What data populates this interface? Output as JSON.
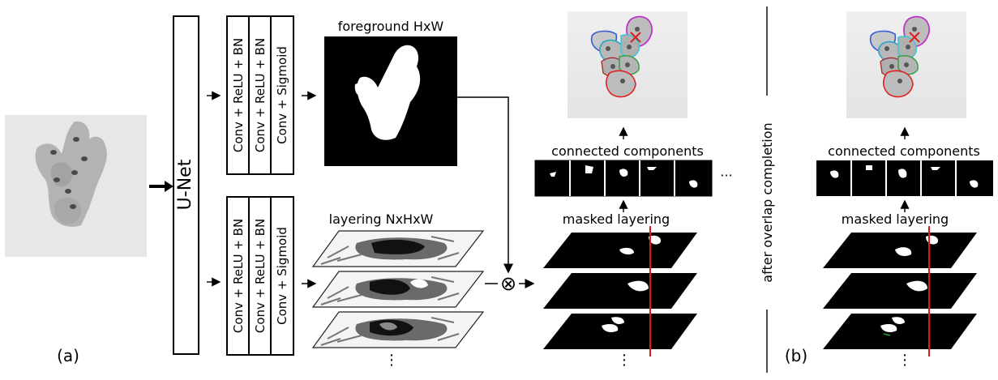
{
  "panel_a_label": "(a)",
  "panel_b_label": "(b)",
  "unet_label": "U-Net",
  "upper_head": [
    "Conv + ReLU + BN",
    "Conv + ReLU + BN",
    "Conv + Sigmoid"
  ],
  "lower_head": [
    "Conv + ReLU + BN",
    "Conv + ReLU + BN",
    "Conv + Sigmoid"
  ],
  "foreground_label": "foreground HxW",
  "layering_label": "layering NxHxW",
  "connected_components_label": "connected components",
  "masked_layering_label": "masked layering",
  "overlap_completion_label": "after overlap completion",
  "ellipsis_vertical": "⋮",
  "ellipsis_horizontal": "···",
  "multiply_symbol": "⊗",
  "colors": {
    "overlay_blue": "#3a5bd9",
    "overlay_magenta": "#c026c8",
    "overlay_red": "#e02020",
    "overlay_green": "#2e9e3e",
    "cut_line": "#e01818"
  }
}
